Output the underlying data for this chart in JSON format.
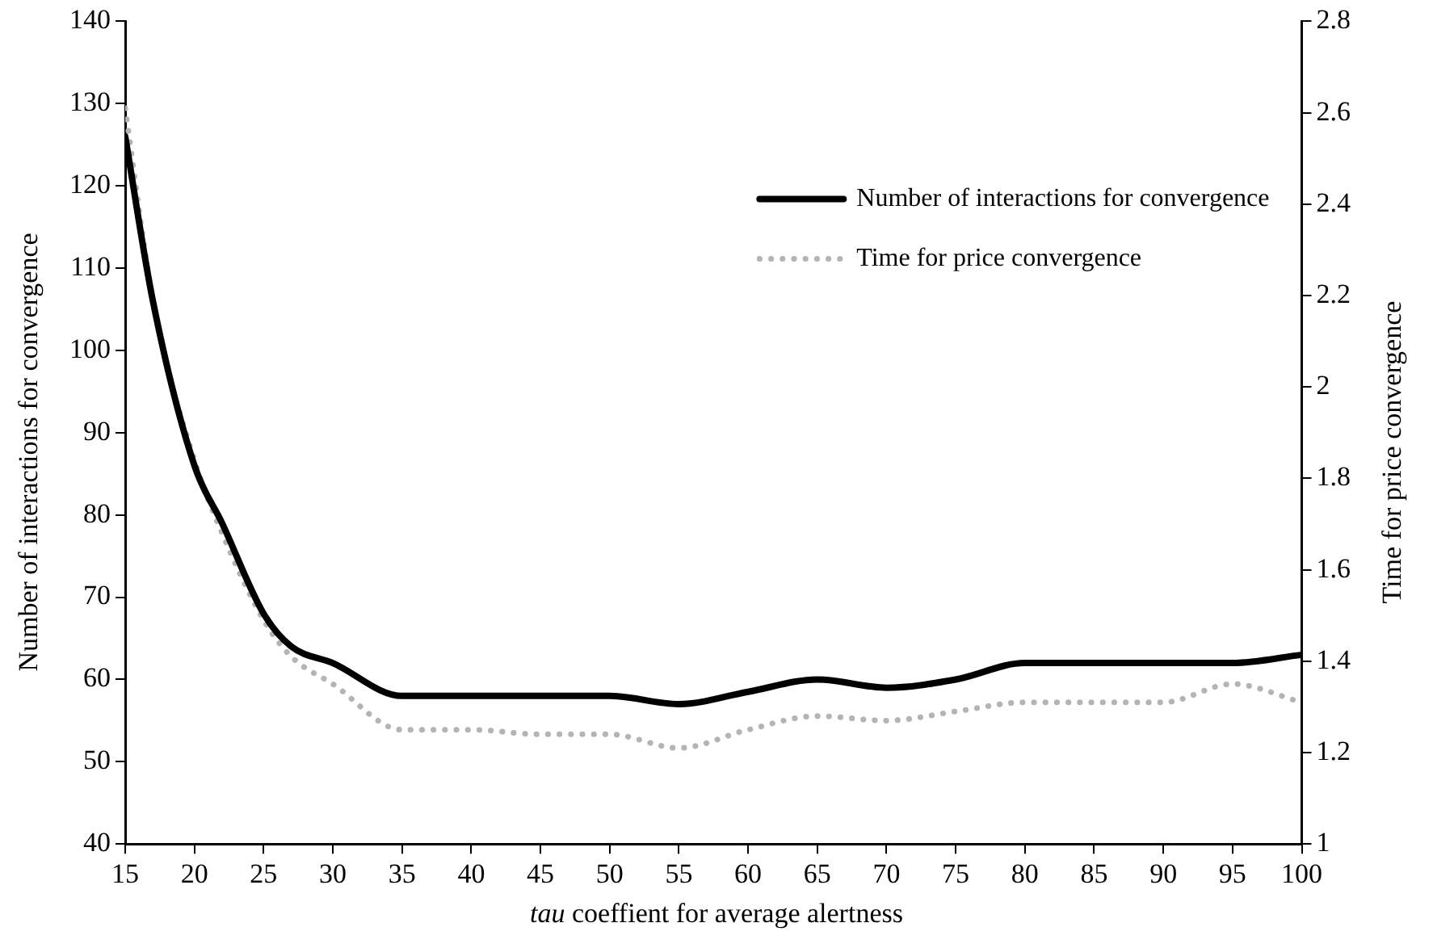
{
  "chart_data": {
    "type": "line",
    "xlabel": "tau coeffient for average alertness",
    "ylabel": "Number of interactions for convergence",
    "y2label": "Time for price convergence",
    "x": [
      15,
      17,
      20,
      22,
      25,
      27,
      30,
      35,
      40,
      45,
      50,
      55,
      60,
      65,
      70,
      75,
      80,
      85,
      90,
      95,
      100
    ],
    "series": [
      {
        "name": "Number of interactions for convergence",
        "color": "#000000",
        "line_style": "solid",
        "values": [
          126,
          106,
          86,
          79,
          68,
          64,
          62,
          58,
          58,
          58,
          58,
          57,
          58.5,
          60,
          59,
          60,
          62,
          62,
          62,
          62,
          63
        ]
      },
      {
        "name": "Time for price convergence",
        "color": "#b4b4b4",
        "line_style": "dotted",
        "axis": "y2",
        "values": [
          2.61,
          2.19,
          1.84,
          1.68,
          1.49,
          1.41,
          1.35,
          1.25,
          1.25,
          1.24,
          1.24,
          1.21,
          1.25,
          1.28,
          1.27,
          1.29,
          1.31,
          1.31,
          1.31,
          1.35,
          1.31
        ]
      }
    ],
    "xlim": [
      15,
      100
    ],
    "xticks": [
      15,
      20,
      25,
      30,
      35,
      40,
      45,
      50,
      55,
      60,
      65,
      70,
      75,
      80,
      85,
      90,
      95,
      100
    ],
    "ylim": [
      40,
      140
    ],
    "yticks": [
      40,
      50,
      60,
      70,
      80,
      90,
      100,
      110,
      120,
      130,
      140
    ],
    "y2lim": [
      1,
      2.8
    ],
    "y2ticks": [
      1,
      1.2,
      1.4,
      1.6,
      1.8,
      2,
      2.2,
      2.4,
      2.6,
      2.8
    ],
    "grid": false,
    "legend": "top right",
    "marker": "none"
  }
}
